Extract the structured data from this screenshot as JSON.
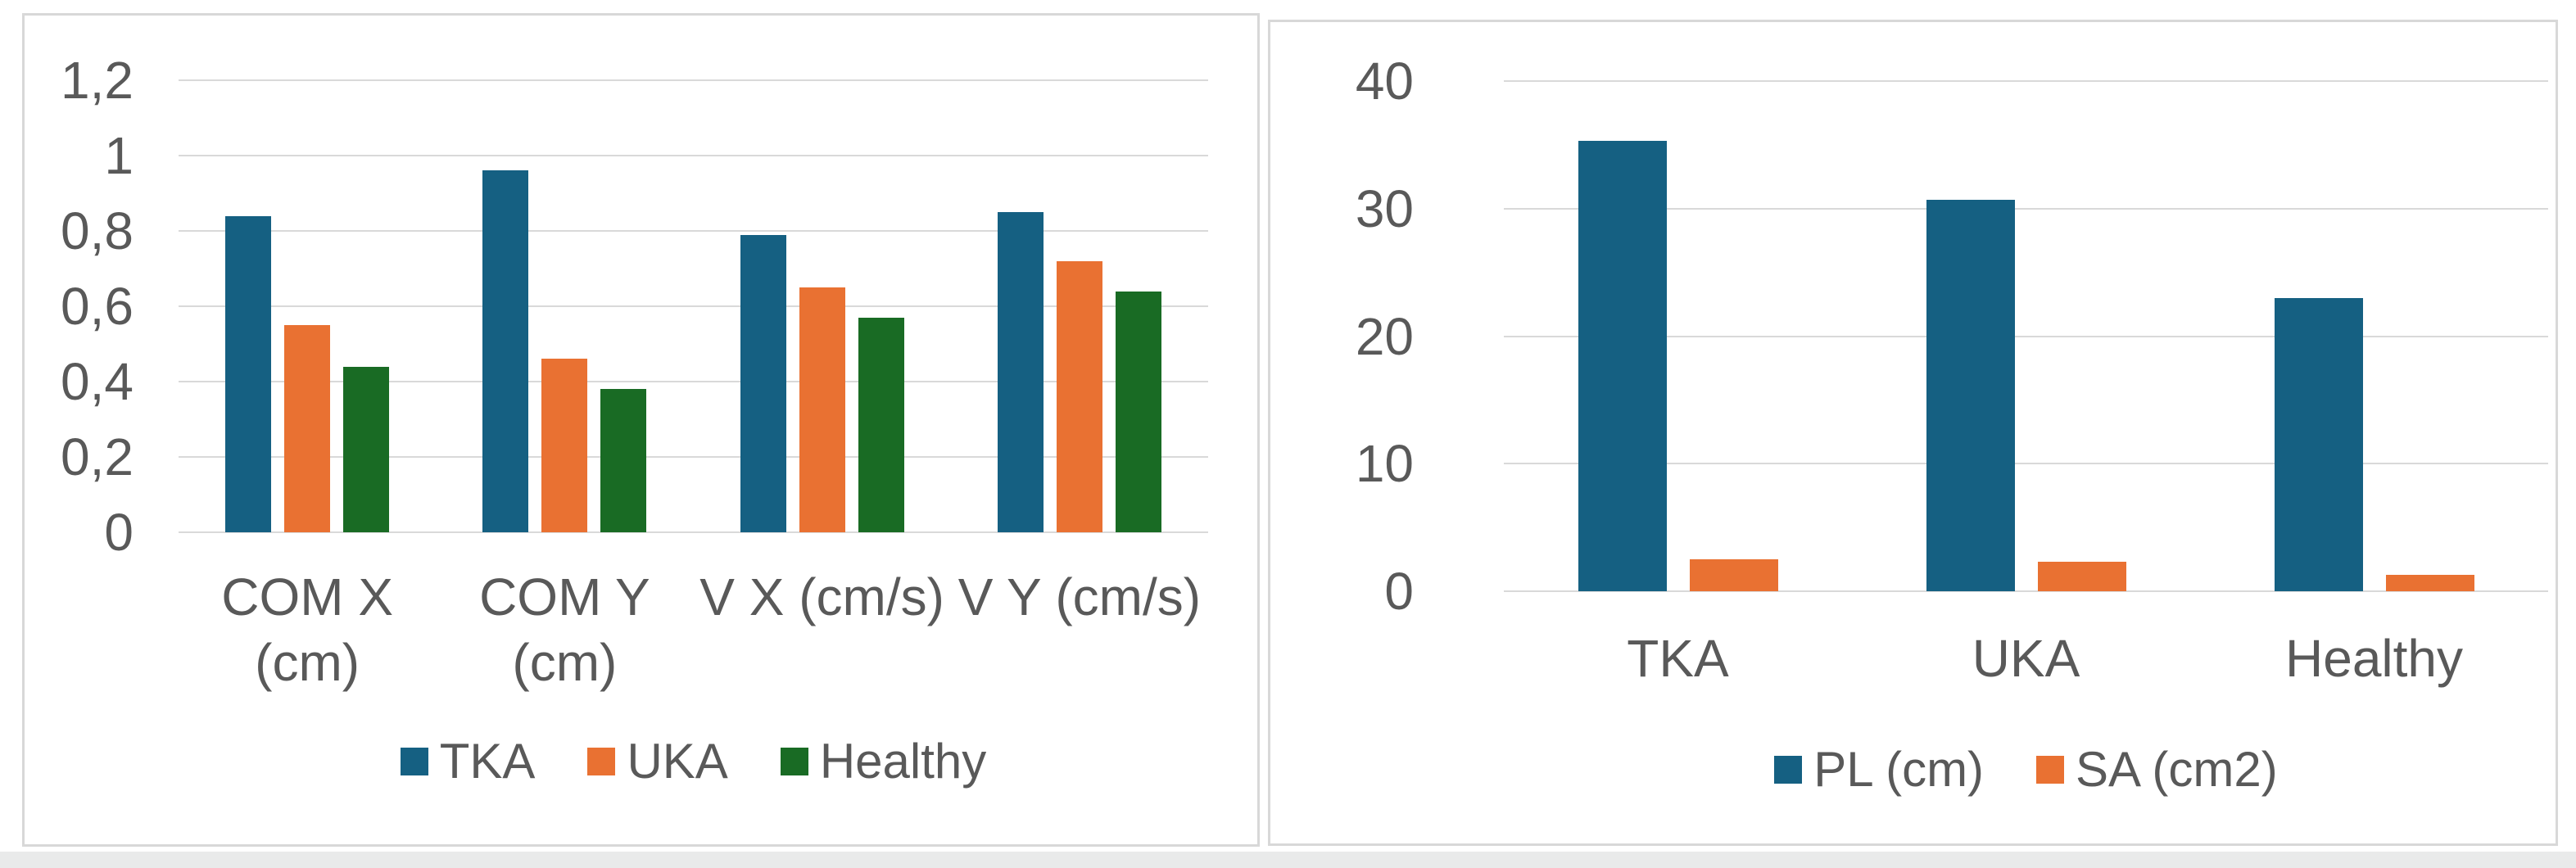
{
  "style": {
    "background": "#FFFFFF",
    "panel_border": "#D8D8D8",
    "gridline_color": "#D9D9D9",
    "text_color": "#595959",
    "accent_blue": "#156082",
    "accent_orange": "#E97132",
    "accent_green": "#196B24"
  },
  "chart_data": [
    {
      "name": "com-velocity-chart",
      "type": "bar",
      "title": "",
      "xlabel": "",
      "ylabel": "",
      "categories": [
        "COM X (cm)",
        "COM Y (cm)",
        "V X (cm/s)",
        "V Y (cm/s)"
      ],
      "series": [
        {
          "name": "TKA",
          "color": "#156082",
          "values": [
            0.84,
            0.96,
            0.79,
            0.85
          ]
        },
        {
          "name": "UKA",
          "color": "#E97132",
          "values": [
            0.55,
            0.46,
            0.65,
            0.72
          ]
        },
        {
          "name": "Healthy",
          "color": "#196B24",
          "values": [
            0.44,
            0.38,
            0.57,
            0.64
          ]
        }
      ],
      "ylim": [
        0,
        1.2
      ],
      "yticks": [
        {
          "value": 0,
          "label": "0"
        },
        {
          "value": 0.2,
          "label": "0,2"
        },
        {
          "value": 0.4,
          "label": "0,4"
        },
        {
          "value": 0.6,
          "label": "0,6"
        },
        {
          "value": 0.8,
          "label": "0,8"
        },
        {
          "value": 1,
          "label": "1"
        },
        {
          "value": 1.2,
          "label": "1,2"
        }
      ],
      "grid": true,
      "legend_position": "bottom"
    },
    {
      "name": "path-length-sway-area-chart",
      "type": "bar",
      "title": "",
      "xlabel": "",
      "ylabel": "",
      "categories": [
        "TKA",
        "UKA",
        "Healthy"
      ],
      "series": [
        {
          "name": "PL (cm)",
          "color": "#156082",
          "values": [
            35.3,
            30.7,
            23.0
          ]
        },
        {
          "name": "SA (cm2)",
          "color": "#E97132",
          "values": [
            2.5,
            2.3,
            1.3
          ]
        }
      ],
      "ylim": [
        0,
        40
      ],
      "yticks": [
        {
          "value": 0,
          "label": "0"
        },
        {
          "value": 10,
          "label": "10"
        },
        {
          "value": 20,
          "label": "20"
        },
        {
          "value": 30,
          "label": "30"
        },
        {
          "value": 40,
          "label": "40"
        }
      ],
      "grid": true,
      "legend_position": "bottom"
    }
  ]
}
